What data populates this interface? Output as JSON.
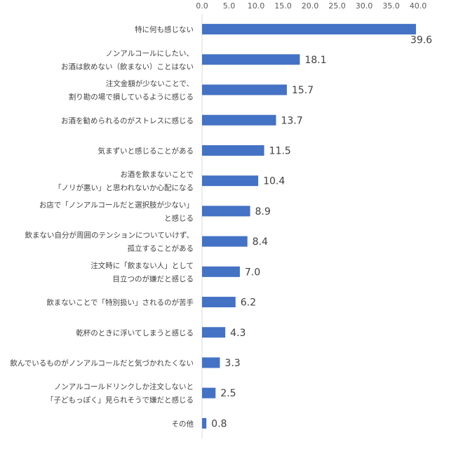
{
  "chart_data": {
    "type": "bar",
    "orientation": "horizontal",
    "title": "",
    "xlabel": "",
    "ylabel": "",
    "xlim": [
      0,
      40
    ],
    "x_ticks": [
      "0.0",
      "5.0",
      "10.0",
      "15.0",
      "20.0",
      "25.0",
      "30.0",
      "35.0",
      "40.0"
    ],
    "x_axis_position": "top",
    "grid": false,
    "bar_color": "#4472C4",
    "categories": [
      [
        "特に何も感じない"
      ],
      [
        "ノンアルコールにしたい、",
        "お酒は飲めない（飲まない）ことはない"
      ],
      [
        "注文金額が少ないことで、",
        "割り勘の場で損しているように感じる"
      ],
      [
        "お酒を勧められるのがストレスに感じる"
      ],
      [
        "気まずいと感じることがある"
      ],
      [
        "お酒を飲まないことで",
        "「ノリが悪い」と思われないか心配になる"
      ],
      [
        "お店で「ノンアルコールだと選択肢が少ない」",
        "と感じる"
      ],
      [
        "飲まない自分が周囲のテンションについていけず、",
        "孤立することがある"
      ],
      [
        "注文時に「飲まない人」として",
        "目立つのが嫌だと感じる"
      ],
      [
        "飲まないことで「特別扱い」されるのが苦手"
      ],
      [
        "乾杯のときに浮いてしまうと感じる"
      ],
      [
        "飲んでいるものがノンアルコールだと気づかれたくない"
      ],
      [
        "ノンアルコールドリンクしか注文しないと",
        "「子どもっぽく」見られそうで嫌だと感じる"
      ],
      [
        "その他"
      ]
    ],
    "values": [
      39.6,
      18.1,
      15.7,
      13.7,
      11.5,
      10.4,
      8.9,
      8.4,
      7.0,
      6.2,
      4.3,
      3.3,
      2.5,
      0.8
    ],
    "value_labels": [
      "39.6",
      "18.1",
      "15.7",
      "13.7",
      "11.5",
      "10.4",
      "8.9",
      "8.4",
      "7.0",
      "6.2",
      "4.3",
      "3.3",
      "2.5",
      "0.8"
    ]
  }
}
